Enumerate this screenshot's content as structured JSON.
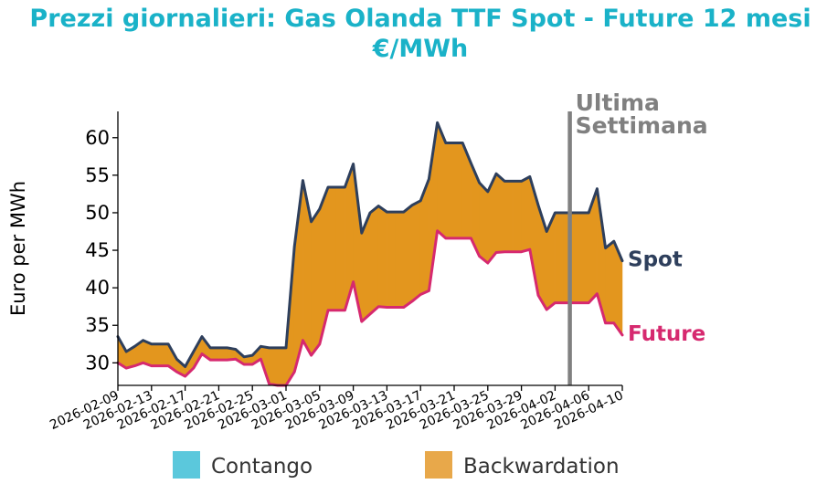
{
  "chart_data": {
    "type": "area",
    "title_line1": "Prezzi giornalieri: Gas Olanda TTF Spot - Future 12 mesi",
    "title_line2": "€/MWh",
    "xlabel": "",
    "ylabel": "Euro per MWh",
    "ylim": [
      27,
      63.5
    ],
    "yticks": [
      30,
      35,
      40,
      45,
      50,
      55,
      60
    ],
    "x_tick_labels": [
      "2026-02-09",
      "2026-02-13",
      "2026-02-17",
      "2026-02-21",
      "2026-02-25",
      "2026-03-01",
      "2026-03-05",
      "2026-03-09",
      "2026-03-13",
      "2026-03-17",
      "2026-03-21",
      "2026-03-25",
      "2026-03-29",
      "2026-04-02",
      "2026-04-06",
      "2026-04-10"
    ],
    "x": [
      "2026-02-09",
      "2026-02-10",
      "2026-02-11",
      "2026-02-12",
      "2026-02-13",
      "2026-02-14",
      "2026-02-15",
      "2026-02-16",
      "2026-02-17",
      "2026-02-18",
      "2026-02-19",
      "2026-02-20",
      "2026-02-21",
      "2026-02-22",
      "2026-02-23",
      "2026-02-24",
      "2026-02-25",
      "2026-02-26",
      "2026-02-27",
      "2026-02-28",
      "2026-03-01",
      "2026-03-02",
      "2026-03-03",
      "2026-03-04",
      "2026-03-05",
      "2026-03-06",
      "2026-03-07",
      "2026-03-08",
      "2026-03-09",
      "2026-03-10",
      "2026-03-11",
      "2026-03-12",
      "2026-03-13",
      "2026-03-14",
      "2026-03-15",
      "2026-03-16",
      "2026-03-17",
      "2026-03-18",
      "2026-03-19",
      "2026-03-20",
      "2026-03-21",
      "2026-03-22",
      "2026-03-23",
      "2026-03-24",
      "2026-03-25",
      "2026-03-26",
      "2026-03-27",
      "2026-03-28",
      "2026-03-29",
      "2026-03-30",
      "2026-03-31",
      "2026-04-01",
      "2026-04-02",
      "2026-04-03",
      "2026-04-04",
      "2026-04-05",
      "2026-04-06",
      "2026-04-07",
      "2026-04-08",
      "2026-04-09",
      "2026-04-10"
    ],
    "series": [
      {
        "name": "Spot",
        "color": "#2e3f5c",
        "values": [
          33.5,
          31.5,
          32.2,
          33.0,
          32.5,
          32.5,
          32.5,
          30.5,
          29.5,
          31.5,
          33.5,
          32.0,
          32.0,
          32.0,
          31.8,
          30.8,
          31.0,
          32.2,
          32.0,
          32.0,
          32.0,
          45.5,
          54.3,
          48.8,
          50.5,
          53.4,
          53.4,
          53.4,
          56.5,
          47.3,
          50.0,
          50.9,
          50.1,
          50.1,
          50.1,
          51.0,
          51.6,
          54.5,
          62.0,
          59.3,
          59.3,
          59.3,
          56.6,
          54.0,
          52.8,
          55.2,
          54.2,
          54.2,
          54.2,
          54.8,
          51.0,
          47.5,
          50.0,
          50.0,
          50.0,
          50.0,
          50.0,
          53.2,
          45.3,
          46.2,
          43.6
        ]
      },
      {
        "name": "Future",
        "color": "#d6296f",
        "values": [
          30.0,
          29.3,
          29.6,
          30.0,
          29.6,
          29.6,
          29.6,
          28.8,
          28.2,
          29.3,
          31.2,
          30.4,
          30.4,
          30.4,
          30.5,
          29.8,
          29.8,
          30.5,
          27.2,
          27.0,
          27.0,
          28.8,
          33.0,
          31.0,
          32.5,
          37.0,
          37.0,
          37.0,
          40.8,
          35.5,
          36.5,
          37.5,
          37.4,
          37.4,
          37.4,
          38.2,
          39.1,
          39.6,
          47.6,
          46.6,
          46.6,
          46.6,
          46.6,
          44.2,
          43.3,
          44.7,
          44.8,
          44.8,
          44.8,
          45.1,
          39.0,
          37.1,
          38.0,
          38.0,
          38.0,
          38.0,
          38.0,
          39.2,
          35.3,
          35.3,
          33.7
        ]
      }
    ],
    "fill_colors": {
      "contango": "#5bc8dc",
      "backwardation": "#e3961e"
    },
    "annotation": {
      "line1": "Ultima",
      "line2": "Settimana",
      "x": "2026-04-03",
      "color": "#808080"
    },
    "legend": [
      {
        "label": "Contango",
        "color": "#5bc8dc"
      },
      {
        "label": "Backwardation",
        "color": "#e8a84a"
      }
    ],
    "legend_position": "bottom",
    "grid": false
  }
}
